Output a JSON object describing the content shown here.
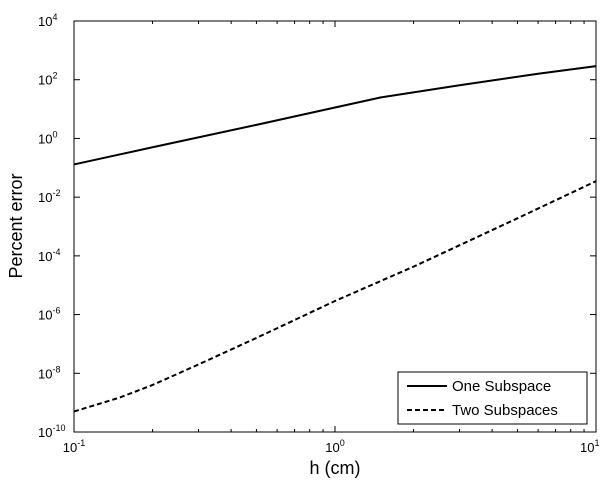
{
  "chart_data": {
    "type": "line",
    "title": "",
    "xlabel": "h (cm)",
    "ylabel": "Percent error",
    "xscale": "log",
    "yscale": "log",
    "xlim": [
      0.1,
      10
    ],
    "ylim": [
      1e-10,
      10000
    ],
    "grid": false,
    "legend_position": "bottom-right",
    "x_ticks": [
      {
        "value": 0.1,
        "base": "10",
        "exp": "-1"
      },
      {
        "value": 1,
        "base": "10",
        "exp": "0"
      },
      {
        "value": 10,
        "base": "10",
        "exp": "1"
      }
    ],
    "y_ticks": [
      {
        "value": 1e-10,
        "base": "10",
        "exp": "-10"
      },
      {
        "value": 1e-08,
        "base": "10",
        "exp": "-8"
      },
      {
        "value": 1e-06,
        "base": "10",
        "exp": "-6"
      },
      {
        "value": 0.0001,
        "base": "10",
        "exp": "-4"
      },
      {
        "value": 0.01,
        "base": "10",
        "exp": "-2"
      },
      {
        "value": 1,
        "base": "10",
        "exp": "0"
      },
      {
        "value": 100,
        "base": "10",
        "exp": "2"
      },
      {
        "value": 10000,
        "base": "10",
        "exp": "4"
      }
    ],
    "series": [
      {
        "name": "One Subspace",
        "style": "solid",
        "color": "#000000",
        "x": [
          0.1,
          0.2,
          0.5,
          1.0,
          1.5,
          3.0,
          6.0,
          10.0
        ],
        "y": [
          0.13,
          0.5,
          2.9,
          11.3,
          25,
          65,
          160,
          290
        ]
      },
      {
        "name": "Two Subspaces",
        "style": "dashed",
        "color": "#000000",
        "x": [
          0.1,
          0.15,
          0.2,
          0.3,
          0.5,
          1.0,
          2.0,
          5.0,
          10.0
        ],
        "y": [
          5e-10,
          1.5e-09,
          4e-09,
          2e-08,
          1.6e-07,
          2.9e-06,
          4.3e-05,
          0.0019,
          0.035
        ]
      }
    ]
  }
}
